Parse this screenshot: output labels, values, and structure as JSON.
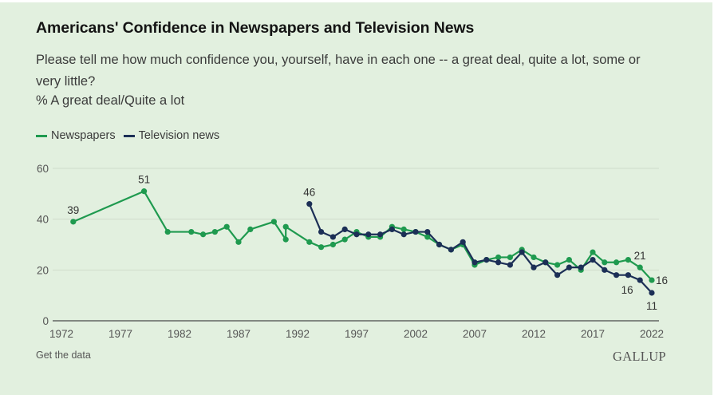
{
  "header": {
    "title": "Americans' Confidence in Newspapers and Television News",
    "subtitle": "Please tell me how much confidence you, yourself, have in each one -- a great deal, quite a lot, some or very little?",
    "measure": "% A great deal/Quite a lot"
  },
  "footer": {
    "get_data": "Get the data",
    "brand": "GALLUP"
  },
  "colors": {
    "background": "#e2f0df",
    "newspapers": "#1f9a4f",
    "television": "#1c2f56",
    "grid": "#cfdccb",
    "axis": "#4a4a4a",
    "text": "#3b3b3b"
  },
  "chart_data": {
    "type": "line",
    "title": "Americans' Confidence in Newspapers and Television News",
    "xlabel": "",
    "ylabel": "% A great deal/Quite a lot",
    "xlim": [
      1972,
      2022
    ],
    "ylim": [
      0,
      60
    ],
    "x_ticks": [
      1972,
      1977,
      1982,
      1987,
      1992,
      1997,
      2002,
      2007,
      2012,
      2017,
      2022
    ],
    "y_ticks": [
      0,
      20,
      40,
      60
    ],
    "grid": true,
    "legend_position": "top-left",
    "series": [
      {
        "name": "Newspapers",
        "color": "#1f9a4f",
        "x": [
          1973,
          1979,
          1981,
          1983,
          1984,
          1985,
          1986,
          1987,
          1988,
          1990,
          1991,
          1991,
          1993,
          1994,
          1995,
          1996,
          1997,
          1998,
          1999,
          2000,
          2001,
          2002,
          2003,
          2004,
          2005,
          2006,
          2007,
          2008,
          2009,
          2010,
          2011,
          2012,
          2013,
          2014,
          2015,
          2016,
          2017,
          2018,
          2019,
          2020,
          2021,
          2022
        ],
        "values": [
          39,
          51,
          35,
          35,
          34,
          35,
          37,
          31,
          36,
          39,
          32,
          37,
          31,
          29,
          30,
          32,
          35,
          33,
          33,
          37,
          36,
          35,
          33,
          30,
          28,
          30,
          22,
          24,
          25,
          25,
          28,
          25,
          23,
          22,
          24,
          20,
          27,
          23,
          23,
          24,
          21,
          16
        ],
        "labels": [
          {
            "index": 0,
            "text": "39",
            "position": "above"
          },
          {
            "index": 1,
            "text": "51",
            "position": "above"
          },
          {
            "index": 40,
            "text": "21",
            "position": "above"
          },
          {
            "index": 41,
            "text": "16",
            "position": "right"
          }
        ]
      },
      {
        "name": "Television news",
        "color": "#1c2f56",
        "x": [
          1993,
          1994,
          1995,
          1996,
          1997,
          1998,
          1999,
          2000,
          2001,
          2002,
          2003,
          2004,
          2005,
          2006,
          2007,
          2008,
          2009,
          2010,
          2011,
          2012,
          2013,
          2014,
          2015,
          2016,
          2017,
          2018,
          2019,
          2020,
          2021,
          2022
        ],
        "values": [
          46,
          35,
          33,
          36,
          34,
          34,
          34,
          36,
          34,
          35,
          35,
          30,
          28,
          31,
          23,
          24,
          23,
          22,
          27,
          21,
          23,
          18,
          21,
          21,
          24,
          20,
          18,
          18,
          16,
          11
        ],
        "labels": [
          {
            "index": 0,
            "text": "46",
            "position": "above"
          },
          {
            "index": 28,
            "text": "16",
            "position": "below-left"
          },
          {
            "index": 29,
            "text": "11",
            "position": "below"
          }
        ]
      }
    ]
  }
}
